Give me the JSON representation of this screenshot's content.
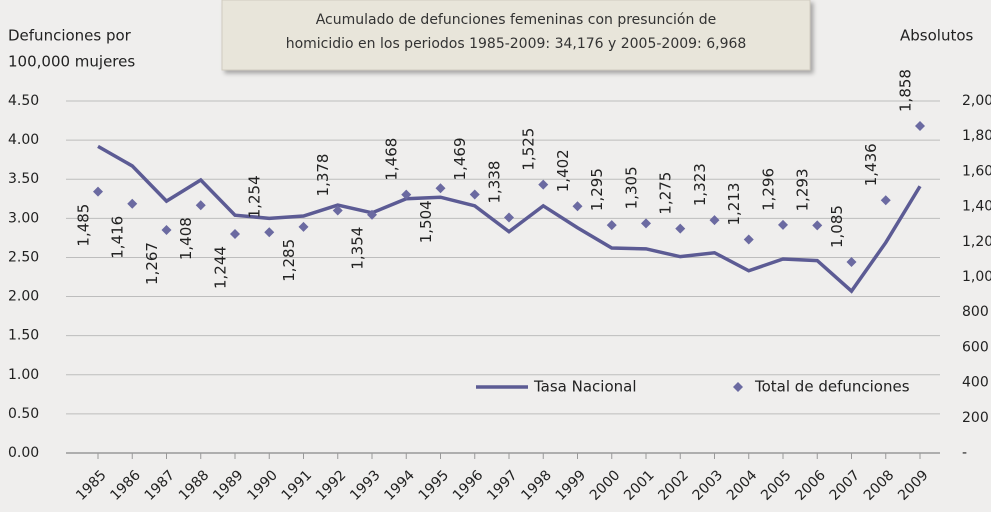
{
  "chart_data": {
    "type": "line",
    "y_label": [
      "Defunciones por",
      "100,000 mujeres"
    ],
    "y2_label": "Absolutos",
    "annotation": [
      "Acumulado de defunciones femeninas con presunción de",
      "homicidio en los periodos 1985-2009: 34,176 y 2005-2009: 6,968"
    ],
    "categories": [
      "1985",
      "1986",
      "1987",
      "1988",
      "1989",
      "1990",
      "1991",
      "1992",
      "1993",
      "1994",
      "1995",
      "1996",
      "1997",
      "1998",
      "1999",
      "2000",
      "2001",
      "2002",
      "2003",
      "2004",
      "2005",
      "2006",
      "2007",
      "2008",
      "2009"
    ],
    "series": [
      {
        "name": "Tasa Nacional",
        "color": "#5c5b94",
        "type": "line",
        "values": [
          3.92,
          3.67,
          3.22,
          3.49,
          3.04,
          3.0,
          3.03,
          3.17,
          3.07,
          3.25,
          3.27,
          3.16,
          2.83,
          3.16,
          2.88,
          2.62,
          2.61,
          2.51,
          2.56,
          2.33,
          2.48,
          2.46,
          2.07,
          2.69,
          3.41
        ]
      },
      {
        "name": "Total de defunciones",
        "color": "#6b6aa1",
        "type": "scatter",
        "axis": "y2",
        "values": [
          1485,
          1416,
          1267,
          1408,
          1244,
          1254,
          1285,
          1378,
          1354,
          1468,
          1504,
          1469,
          1338,
          1525,
          1402,
          1295,
          1305,
          1275,
          1323,
          1213,
          1296,
          1293,
          1085,
          1436,
          1858
        ],
        "value_labels": [
          "1,485",
          "1,416",
          "1,267",
          "1,408",
          "1,244",
          "1,254",
          "1,285",
          "1,378",
          "1,354",
          "1,468",
          "1,504",
          "1,469",
          "1,338",
          "1,525",
          "1,402",
          "1,295",
          "1,305",
          "1,275",
          "1,323",
          "1,213",
          "1,296",
          "1,293",
          "1,085",
          "1,436",
          "1,858"
        ]
      }
    ],
    "ylim": [
      0,
      4.5
    ],
    "yticks": [
      {
        "value": 0,
        "label": "0.00"
      },
      {
        "value": 0.5,
        "label": "0.50"
      },
      {
        "value": 1,
        "label": "1.00"
      },
      {
        "value": 1.5,
        "label": "1.50"
      },
      {
        "value": 2,
        "label": "2.00"
      },
      {
        "value": 2.5,
        "label": "2.50"
      },
      {
        "value": 3,
        "label": "3.00"
      },
      {
        "value": 3.5,
        "label": "3.50"
      },
      {
        "value": 4,
        "label": "4.00"
      },
      {
        "value": 4.5,
        "label": "4.50"
      }
    ],
    "y2lim": [
      0,
      2000
    ],
    "y2ticks": [
      {
        "value": 0,
        "label": "-"
      },
      200,
      400,
      600,
      800,
      {
        "value": 1000,
        "label": "1,000"
      },
      {
        "value": 1200,
        "label": "1,200"
      },
      {
        "value": 1400,
        "label": "1,400"
      },
      {
        "value": 1600,
        "label": "1,600"
      },
      {
        "value": 1800,
        "label": "1,800"
      },
      {
        "value": 2000,
        "label": "2,000"
      }
    ],
    "grid": true,
    "legend": "lower right"
  }
}
